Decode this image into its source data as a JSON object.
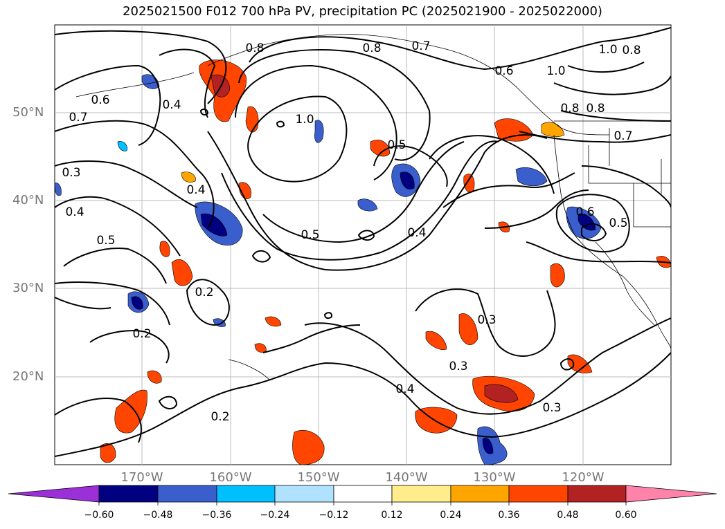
{
  "title": "2025021500 F012 700 hPa PV, precipitation PC (2025021900 - 2025022000)",
  "latitude_labels": [
    "50°N",
    "40°N",
    "30°N",
    "20°N"
  ],
  "longitude_labels": [
    "170°W",
    "160°W",
    "150°W",
    "140°W",
    "130°W",
    "120°W"
  ],
  "contour_labels": [
    "0.8",
    "0.7",
    "1.0",
    "0.6",
    "0.4",
    "0.3",
    "0.5",
    "0.2"
  ],
  "colorbar": {
    "ticks": [
      "−0.60",
      "−0.48",
      "−0.36",
      "−0.24",
      "−0.12",
      "0.12",
      "0.24",
      "0.36",
      "0.48",
      "0.60"
    ],
    "colors": [
      "#9b30d9",
      "#000080",
      "#3a5fcd",
      "#00bfff",
      "#b0e2ff",
      "#ffffff",
      "#ffec8b",
      "#ffa500",
      "#ff4500",
      "#b22222",
      "#ff82ab"
    ]
  },
  "colors": {
    "positive_strong": "#ff4500",
    "positive_mid": "#ffa500",
    "positive_light": "#ffec8b",
    "positive_max": "#b22222",
    "negative_strong": "#000080",
    "negative_mid": "#3a5fcd",
    "negative_light": "#00bfff"
  }
}
